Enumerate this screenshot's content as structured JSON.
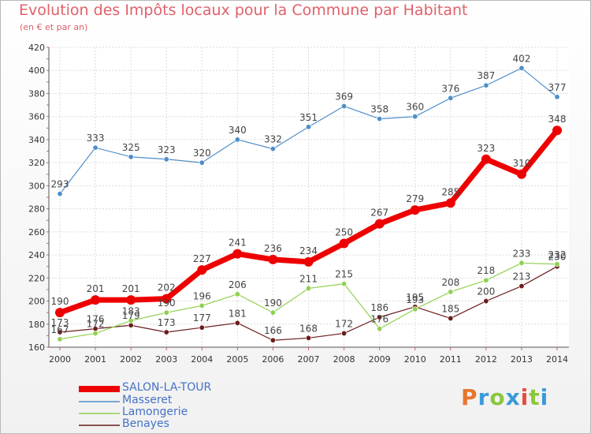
{
  "header": {
    "title": "Evolution des Impôts locaux pour la Commune par Habitant",
    "subtitle": "(en € et par an)"
  },
  "logo": {
    "letters": [
      "P",
      "r",
      "o",
      "x",
      "i",
      "t",
      "i"
    ],
    "colors": [
      "#e8762d",
      "#3a9ad9",
      "#8cc63f",
      "#3a9ad9",
      "#e84c3d",
      "#8cc63f",
      "#3a9ad9"
    ]
  },
  "chart_data": {
    "type": "line",
    "x": [
      2000,
      2001,
      2002,
      2003,
      2004,
      2005,
      2006,
      2007,
      2008,
      2009,
      2010,
      2011,
      2012,
      2013,
      2014
    ],
    "ylim": [
      160,
      420
    ],
    "yticks": [
      160,
      180,
      200,
      220,
      240,
      260,
      280,
      300,
      320,
      340,
      360,
      380,
      400,
      420
    ],
    "grid": true,
    "legend": "bottom-left",
    "series": [
      {
        "name": "SALON-LA-TOUR",
        "color": "#ee0000",
        "values": [
          190,
          201,
          201,
          202,
          227,
          241,
          236,
          234,
          250,
          267,
          279,
          285,
          323,
          310,
          348
        ]
      },
      {
        "name": "Masseret",
        "color": "#4f8ec9",
        "values": [
          293,
          333,
          325,
          323,
          320,
          340,
          332,
          351,
          369,
          358,
          360,
          376,
          387,
          402,
          377
        ]
      },
      {
        "name": "Lamongerie",
        "color": "#8fd14f",
        "values": [
          167,
          172,
          183,
          190,
          196,
          206,
          190,
          211,
          215,
          176,
          193,
          208,
          218,
          233,
          232
        ]
      },
      {
        "name": "Benayes",
        "color": "#6b1c1c",
        "values": [
          173,
          176,
          179,
          173,
          177,
          181,
          166,
          168,
          172,
          186,
          195,
          185,
          200,
          213,
          230
        ]
      }
    ]
  }
}
